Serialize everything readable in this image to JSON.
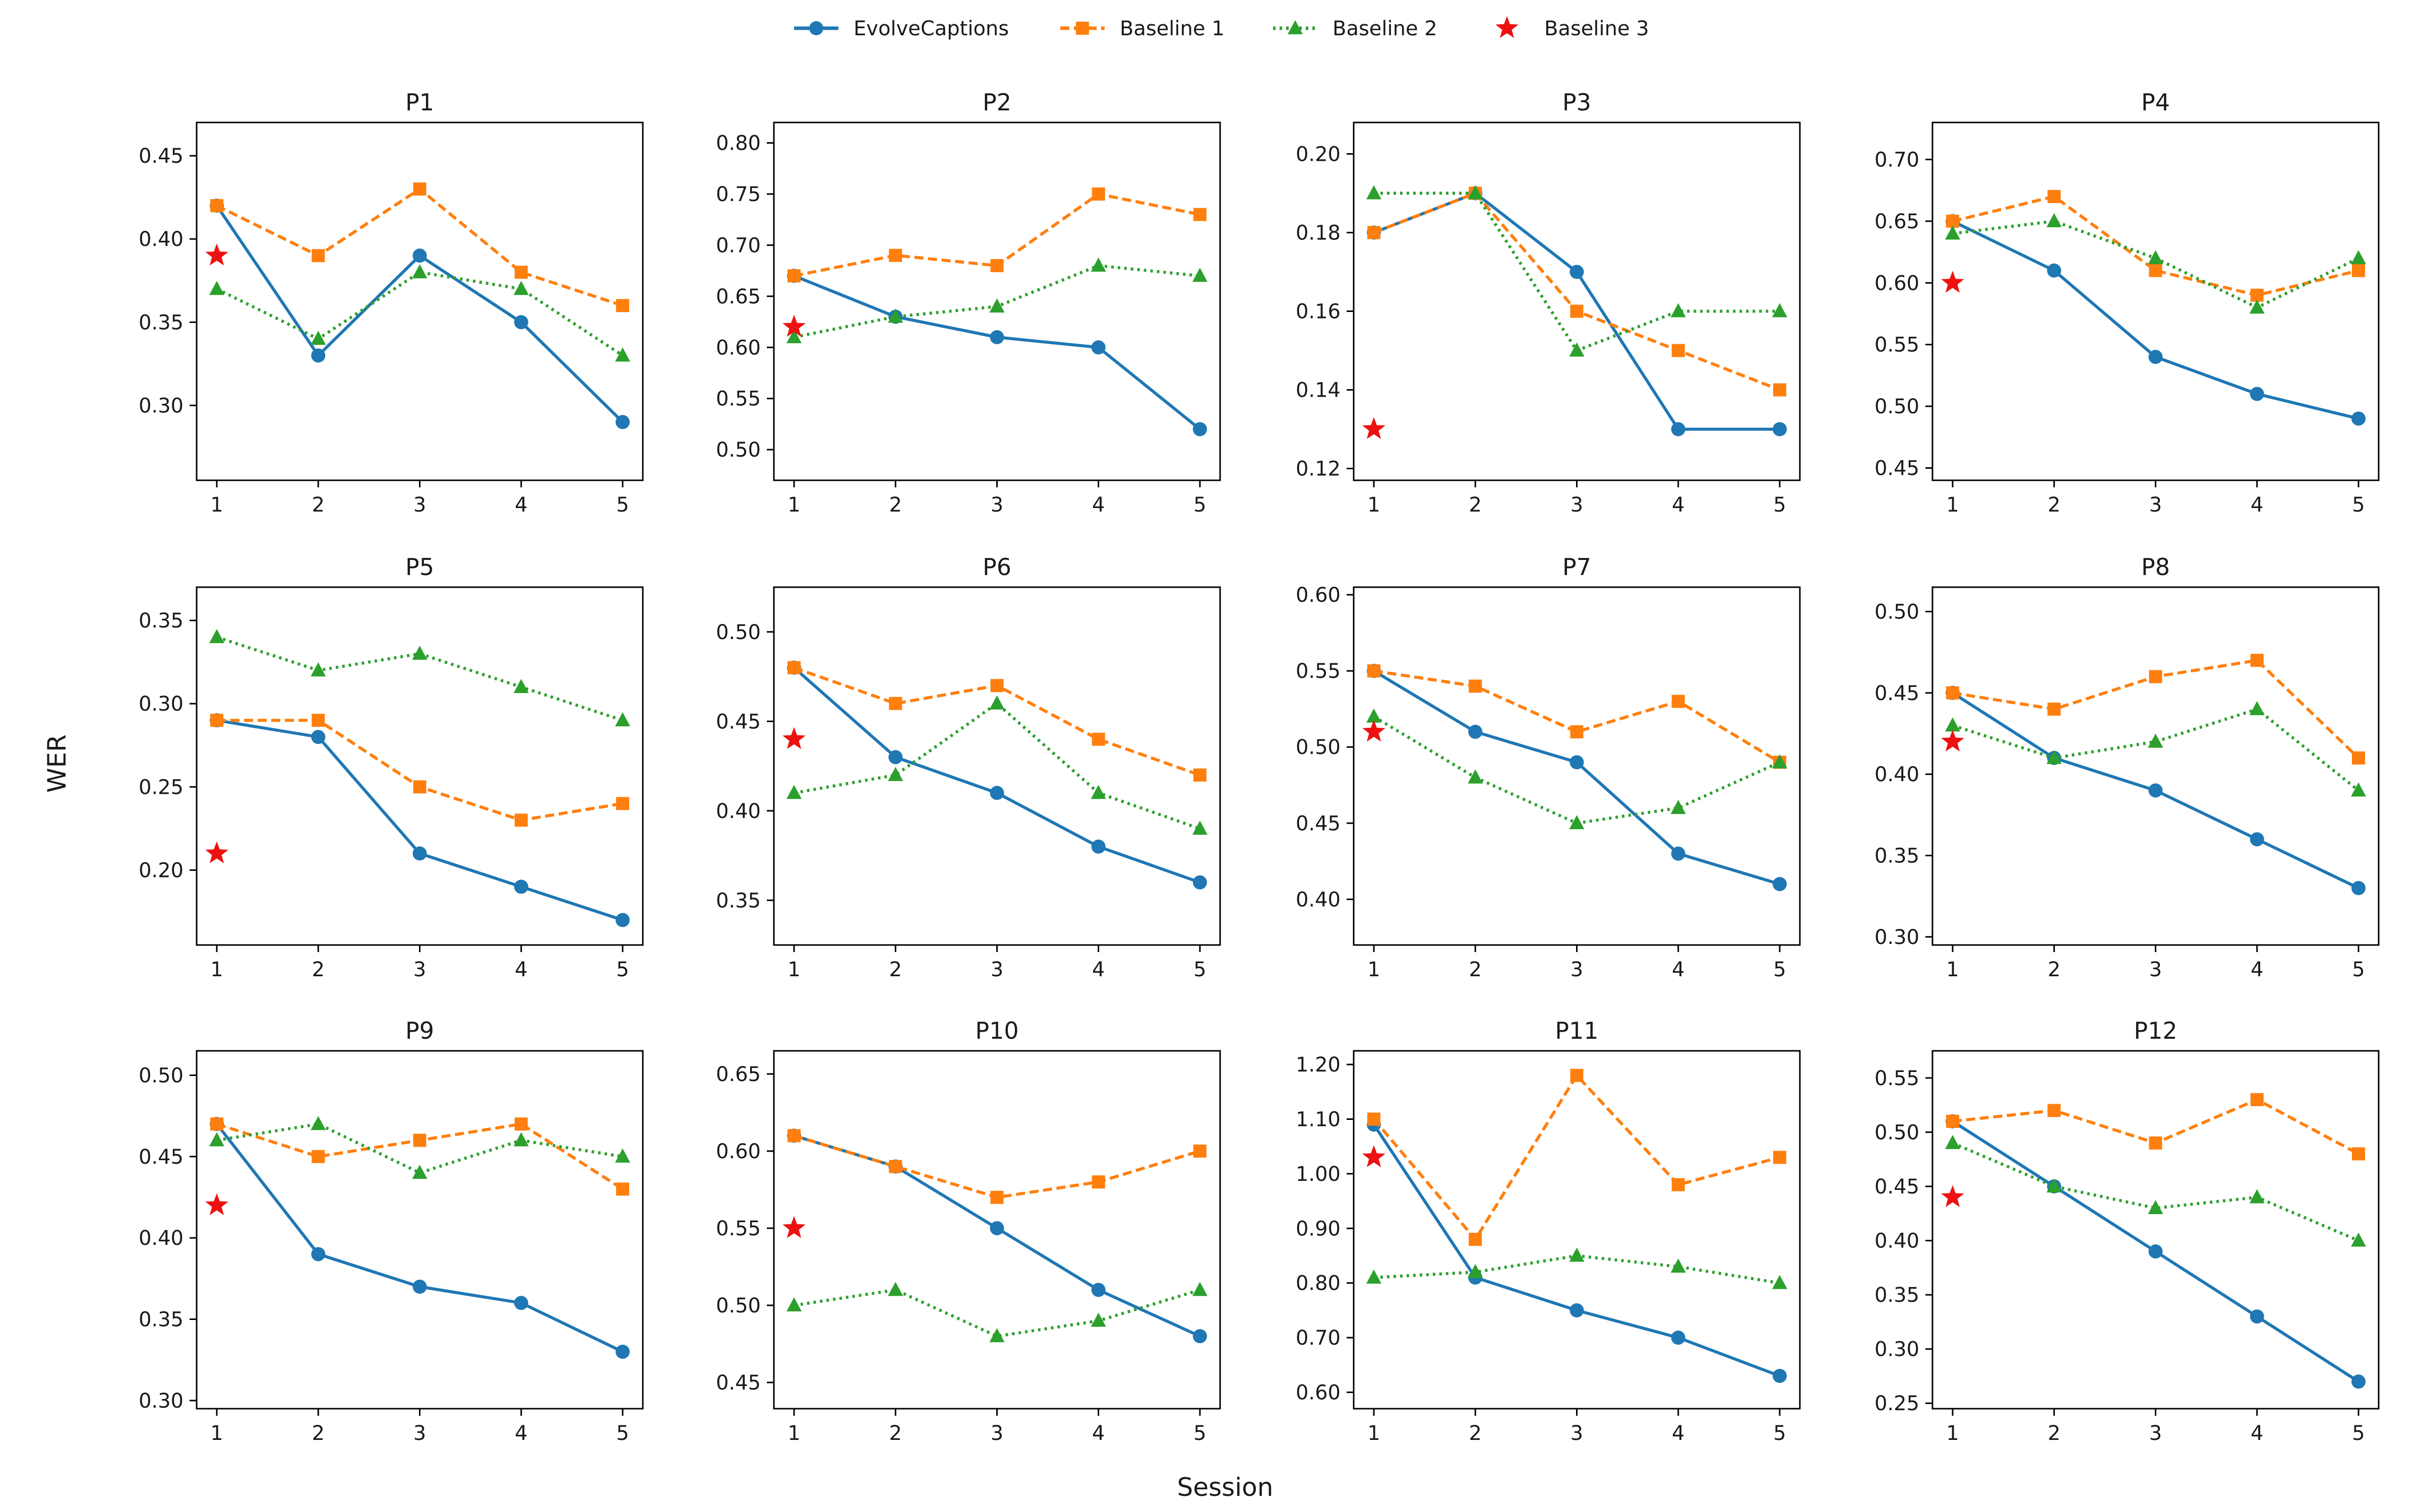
{
  "chart_data": {
    "type": "line",
    "xlabel": "Session",
    "ylabel": "WER",
    "x": [
      1,
      2,
      3,
      4,
      5
    ],
    "legend": {
      "placement": "top-center",
      "entries": [
        {
          "name": "EvolveCaptions",
          "color": "#1f77b4",
          "marker": "circle",
          "linestyle": "solid"
        },
        {
          "name": "Baseline 1",
          "color": "#ff7f0e",
          "marker": "square",
          "linestyle": "dashed"
        },
        {
          "name": "Baseline 2",
          "color": "#2ca02c",
          "marker": "triangle",
          "linestyle": "dotted"
        },
        {
          "name": "Baseline 3",
          "color": "#ee1111",
          "marker": "star",
          "linestyle": "none"
        }
      ]
    },
    "panels": [
      {
        "title": "P1",
        "ylim": [
          0.255,
          0.47
        ],
        "yticks": [
          "0.30",
          "0.35",
          "0.40",
          "0.45"
        ],
        "series": {
          "evolve": [
            0.42,
            0.33,
            0.39,
            0.35,
            0.29
          ],
          "b1": [
            0.42,
            0.39,
            0.43,
            0.38,
            0.36
          ],
          "b2": [
            0.37,
            0.34,
            0.38,
            0.37,
            0.33
          ],
          "b3": 0.39
        }
      },
      {
        "title": "P2",
        "ylim": [
          0.47,
          0.82
        ],
        "yticks": [
          "0.50",
          "0.55",
          "0.60",
          "0.65",
          "0.70",
          "0.75",
          "0.80"
        ],
        "series": {
          "evolve": [
            0.67,
            0.63,
            0.61,
            0.6,
            0.52
          ],
          "b1": [
            0.67,
            0.69,
            0.68,
            0.75,
            0.73
          ],
          "b2": [
            0.61,
            0.63,
            0.64,
            0.68,
            0.67
          ],
          "b3": 0.62
        }
      },
      {
        "title": "P3",
        "ylim": [
          0.117,
          0.208
        ],
        "yticks": [
          "0.12",
          "0.14",
          "0.16",
          "0.18",
          "0.20"
        ],
        "series": {
          "evolve": [
            0.18,
            0.19,
            0.17,
            0.13,
            0.13
          ],
          "b1": [
            0.18,
            0.19,
            0.16,
            0.15,
            0.14
          ],
          "b2": [
            0.19,
            0.19,
            0.15,
            0.16,
            0.16
          ],
          "b3": 0.13
        }
      },
      {
        "title": "P4",
        "ylim": [
          0.44,
          0.73
        ],
        "yticks": [
          "0.45",
          "0.50",
          "0.55",
          "0.60",
          "0.65",
          "0.70"
        ],
        "series": {
          "evolve": [
            0.65,
            0.61,
            0.54,
            0.51,
            0.49
          ],
          "b1": [
            0.65,
            0.67,
            0.61,
            0.59,
            0.61
          ],
          "b2": [
            0.64,
            0.65,
            0.62,
            0.58,
            0.62
          ],
          "b3": 0.6
        }
      },
      {
        "title": "P5",
        "ylim": [
          0.155,
          0.37
        ],
        "yticks": [
          "0.20",
          "0.25",
          "0.30",
          "0.35"
        ],
        "series": {
          "evolve": [
            0.29,
            0.28,
            0.21,
            0.19,
            0.17
          ],
          "b1": [
            0.29,
            0.29,
            0.25,
            0.23,
            0.24
          ],
          "b2": [
            0.34,
            0.32,
            0.33,
            0.31,
            0.29
          ],
          "b3": 0.21
        }
      },
      {
        "title": "P6",
        "ylim": [
          0.325,
          0.525
        ],
        "yticks": [
          "0.35",
          "0.40",
          "0.45",
          "0.50"
        ],
        "series": {
          "evolve": [
            0.48,
            0.43,
            0.41,
            0.38,
            0.36
          ],
          "b1": [
            0.48,
            0.46,
            0.47,
            0.44,
            0.42
          ],
          "b2": [
            0.41,
            0.42,
            0.46,
            0.41,
            0.39
          ],
          "b3": 0.44
        }
      },
      {
        "title": "P7",
        "ylim": [
          0.37,
          0.605
        ],
        "yticks": [
          "0.40",
          "0.45",
          "0.50",
          "0.55",
          "0.60"
        ],
        "series": {
          "evolve": [
            0.55,
            0.51,
            0.49,
            0.43,
            0.41
          ],
          "b1": [
            0.55,
            0.54,
            0.51,
            0.53,
            0.49
          ],
          "b2": [
            0.52,
            0.48,
            0.45,
            0.46,
            0.49
          ],
          "b3": 0.51
        }
      },
      {
        "title": "P8",
        "ylim": [
          0.295,
          0.515
        ],
        "yticks": [
          "0.30",
          "0.35",
          "0.40",
          "0.45",
          "0.50"
        ],
        "series": {
          "evolve": [
            0.45,
            0.41,
            0.39,
            0.36,
            0.33
          ],
          "b1": [
            0.45,
            0.44,
            0.46,
            0.47,
            0.41
          ],
          "b2": [
            0.43,
            0.41,
            0.42,
            0.44,
            0.39
          ],
          "b3": 0.42
        }
      },
      {
        "title": "P9",
        "ylim": [
          0.295,
          0.515
        ],
        "yticks": [
          "0.30",
          "0.35",
          "0.40",
          "0.45",
          "0.50"
        ],
        "series": {
          "evolve": [
            0.47,
            0.39,
            0.37,
            0.36,
            0.33
          ],
          "b1": [
            0.47,
            0.45,
            0.46,
            0.47,
            0.43
          ],
          "b2": [
            0.46,
            0.47,
            0.44,
            0.46,
            0.45
          ],
          "b3": 0.42
        }
      },
      {
        "title": "P10",
        "ylim": [
          0.433,
          0.665
        ],
        "yticks": [
          "0.45",
          "0.50",
          "0.55",
          "0.60",
          "0.65"
        ],
        "series": {
          "evolve": [
            0.61,
            0.59,
            0.55,
            0.51,
            0.48
          ],
          "b1": [
            0.61,
            0.59,
            0.57,
            0.58,
            0.6
          ],
          "b2": [
            0.5,
            0.51,
            0.48,
            0.49,
            0.51
          ],
          "b3": 0.55
        }
      },
      {
        "title": "P11",
        "ylim": [
          0.57,
          1.225
        ],
        "yticks": [
          "0.60",
          "0.70",
          "0.80",
          "0.90",
          "1.00",
          "1.10",
          "1.20"
        ],
        "series": {
          "evolve": [
            1.09,
            0.81,
            0.75,
            0.7,
            0.63
          ],
          "b1": [
            1.1,
            0.88,
            1.18,
            0.98,
            1.03
          ],
          "b2": [
            0.81,
            0.82,
            0.85,
            0.83,
            0.8
          ],
          "b3": 1.03
        }
      },
      {
        "title": "P12",
        "ylim": [
          0.245,
          0.575
        ],
        "yticks": [
          "0.25",
          "0.30",
          "0.35",
          "0.40",
          "0.45",
          "0.50",
          "0.55"
        ],
        "series": {
          "evolve": [
            0.51,
            0.45,
            0.39,
            0.33,
            0.27
          ],
          "b1": [
            0.51,
            0.52,
            0.49,
            0.53,
            0.48
          ],
          "b2": [
            0.49,
            0.45,
            0.43,
            0.44,
            0.4
          ],
          "b3": 0.44
        }
      }
    ]
  }
}
